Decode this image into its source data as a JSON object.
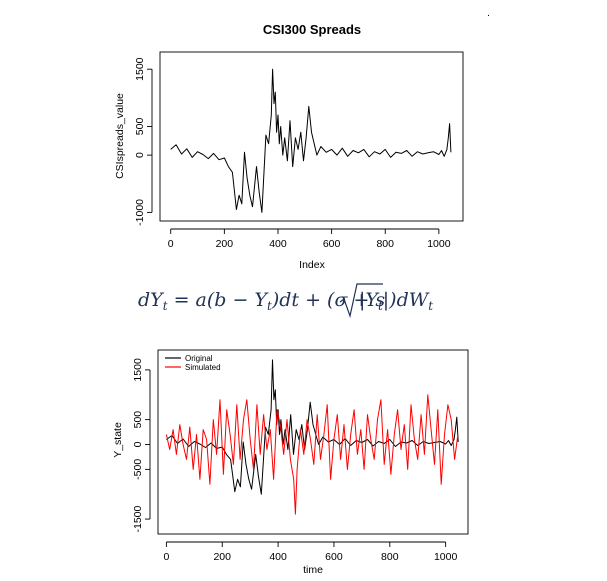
{
  "figure": {
    "stray_mark": "."
  },
  "equation": {
    "dY": "dY",
    "t1": "t",
    "eq_a": " = a(b − Y",
    "t2": "t",
    "eq_b": ")dt + (σ + s",
    "abs_Y": "|Y",
    "t3": "t",
    "abs_close": "|)dW",
    "t4": "t"
  },
  "colors": {
    "original": "#000000",
    "simulated": "#ff0000",
    "equation": "#223355"
  },
  "chart_data": [
    {
      "type": "line",
      "title": "CSI300 Spreads",
      "xlabel": "Index",
      "ylabel": "CSIspreads_value",
      "xlim": [
        -40,
        1090
      ],
      "ylim": [
        -1150,
        1800
      ],
      "xticks": [
        0,
        200,
        400,
        600,
        800,
        1000
      ],
      "yticks": [
        -1000,
        0,
        500,
        1500
      ],
      "legend": "none",
      "grid": false,
      "series": [
        {
          "color": "#000000",
          "x": [
            0,
            20,
            40,
            60,
            80,
            100,
            120,
            140,
            160,
            180,
            200,
            215,
            230,
            245,
            255,
            265,
            275,
            285,
            295,
            305,
            320,
            330,
            340,
            355,
            365,
            375,
            380,
            385,
            390,
            395,
            400,
            405,
            410,
            418,
            425,
            435,
            445,
            455,
            465,
            475,
            485,
            495,
            505,
            515,
            525,
            535,
            545,
            560,
            580,
            600,
            620,
            640,
            660,
            680,
            700,
            720,
            740,
            760,
            780,
            800,
            820,
            840,
            860,
            880,
            900,
            920,
            940,
            960,
            980,
            1000,
            1010,
            1020,
            1030,
            1035,
            1040,
            1045
          ],
          "y": [
            100,
            180,
            20,
            110,
            -40,
            60,
            10,
            -60,
            30,
            -80,
            -50,
            -200,
            -300,
            -950,
            -700,
            -850,
            50,
            -400,
            -700,
            -900,
            -200,
            -650,
            -1000,
            350,
            200,
            700,
            1500,
            900,
            1100,
            400,
            700,
            200,
            500,
            0,
            300,
            -100,
            600,
            -200,
            300,
            100,
            400,
            -100,
            300,
            850,
            400,
            200,
            0,
            150,
            50,
            100,
            0,
            120,
            -20,
            80,
            40,
            100,
            -30,
            60,
            20,
            100,
            -40,
            50,
            30,
            80,
            -20,
            60,
            20,
            40,
            60,
            10,
            80,
            -20,
            100,
            300,
            550,
            50
          ]
        }
      ]
    },
    {
      "type": "line",
      "title": "",
      "xlabel": "time",
      "ylabel": "Y_state",
      "xlim": [
        -30,
        1080
      ],
      "ylim": [
        -1800,
        1900
      ],
      "xticks": [
        0,
        200,
        400,
        600,
        800,
        1000
      ],
      "yticks": [
        -1500,
        -500,
        0,
        500,
        1500
      ],
      "legend": "top-left",
      "grid": false,
      "series": [
        {
          "name": "Original",
          "color": "#000000",
          "x": [
            0,
            20,
            40,
            60,
            80,
            100,
            120,
            140,
            160,
            180,
            200,
            215,
            230,
            245,
            255,
            265,
            275,
            285,
            295,
            305,
            320,
            330,
            340,
            355,
            365,
            375,
            380,
            385,
            390,
            395,
            400,
            405,
            410,
            418,
            425,
            435,
            445,
            455,
            465,
            475,
            485,
            495,
            505,
            515,
            525,
            535,
            545,
            560,
            580,
            600,
            620,
            640,
            660,
            680,
            700,
            720,
            740,
            760,
            780,
            800,
            820,
            840,
            860,
            880,
            900,
            920,
            940,
            960,
            980,
            1000,
            1010,
            1020,
            1030,
            1035,
            1040,
            1045
          ],
          "y": [
            100,
            180,
            20,
            110,
            -40,
            60,
            10,
            -60,
            30,
            -80,
            -50,
            -200,
            -300,
            -950,
            -700,
            -850,
            50,
            -400,
            -700,
            -900,
            -200,
            -650,
            -1000,
            350,
            200,
            700,
            1700,
            900,
            1100,
            400,
            700,
            200,
            500,
            0,
            300,
            -100,
            600,
            -200,
            300,
            100,
            400,
            -100,
            300,
            850,
            400,
            200,
            0,
            150,
            50,
            100,
            0,
            120,
            -20,
            80,
            40,
            100,
            -30,
            60,
            20,
            100,
            -40,
            50,
            30,
            80,
            -20,
            60,
            20,
            40,
            60,
            10,
            80,
            -20,
            100,
            300,
            550,
            50
          ]
        },
        {
          "name": "Simulated",
          "color": "#ff0000",
          "x": [
            0,
            12,
            24,
            36,
            48,
            60,
            72,
            84,
            96,
            108,
            120,
            132,
            144,
            156,
            168,
            180,
            192,
            204,
            216,
            228,
            240,
            252,
            264,
            276,
            288,
            300,
            312,
            324,
            336,
            348,
            360,
            372,
            384,
            396,
            408,
            420,
            432,
            444,
            456,
            462,
            468,
            480,
            492,
            504,
            516,
            528,
            540,
            552,
            564,
            576,
            588,
            600,
            612,
            624,
            636,
            648,
            660,
            672,
            684,
            696,
            708,
            720,
            732,
            744,
            756,
            768,
            780,
            792,
            804,
            816,
            828,
            840,
            852,
            864,
            876,
            888,
            900,
            912,
            924,
            936,
            948,
            960,
            972,
            984,
            996,
            1008,
            1020,
            1032,
            1044
          ],
          "y": [
            200,
            -100,
            300,
            -200,
            400,
            0,
            -300,
            350,
            -500,
            200,
            -700,
            300,
            100,
            -800,
            500,
            -200,
            900,
            -600,
            700,
            200,
            -400,
            800,
            -300,
            500,
            900,
            100,
            -500,
            800,
            -200,
            600,
            -100,
            300,
            -700,
            700,
            400,
            -200,
            500,
            -300,
            -700,
            -1400,
            -500,
            300,
            -200,
            500,
            100,
            -400,
            600,
            -300,
            200,
            800,
            -700,
            100,
            600,
            -300,
            400,
            -500,
            200,
            700,
            -200,
            300,
            -500,
            600,
            100,
            -300,
            500,
            900,
            -400,
            300,
            -600,
            200,
            700,
            -100,
            400,
            -500,
            800,
            100,
            -300,
            600,
            -200,
            1000,
            300,
            -400,
            700,
            -800,
            200,
            800,
            500,
            -300,
            200
          ]
        }
      ]
    }
  ]
}
